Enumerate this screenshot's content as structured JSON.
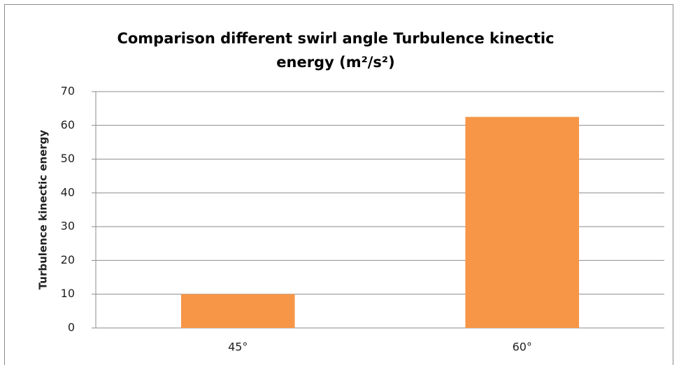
{
  "chart_data": {
    "type": "bar",
    "title": "Comparison different swirl angle Turbulence kinectic energy (m²/s²)",
    "y_label": "Turbulence kinectic energy",
    "categories": [
      "45°",
      "60°"
    ],
    "values": [
      10,
      62.5
    ],
    "color": "#f79646",
    "ylim": [
      0,
      70
    ],
    "yticks": [
      0,
      10,
      20,
      30,
      40,
      50,
      60,
      70
    ],
    "grid": true
  }
}
